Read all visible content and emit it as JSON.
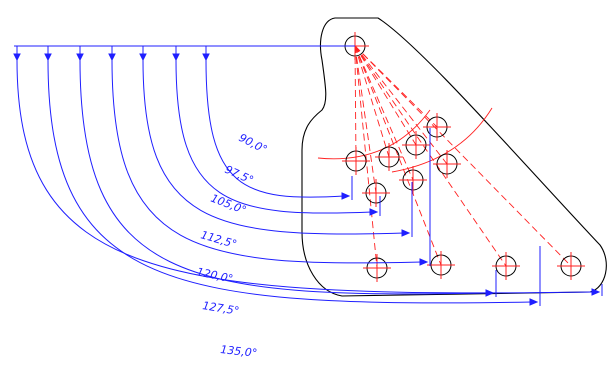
{
  "drawing": {
    "colors": {
      "dimension": "#1f1fff",
      "centerline": "#ff2020",
      "outline": "#000000",
      "background": "#ffffff"
    },
    "angle_unit": "°",
    "dimensions": [
      {
        "label": "90,0°"
      },
      {
        "label": "97,5°"
      },
      {
        "label": "105,0°"
      },
      {
        "label": "112,5°"
      },
      {
        "label": "120,0°"
      },
      {
        "label": "127,5°"
      },
      {
        "label": "135,0°"
      }
    ]
  }
}
